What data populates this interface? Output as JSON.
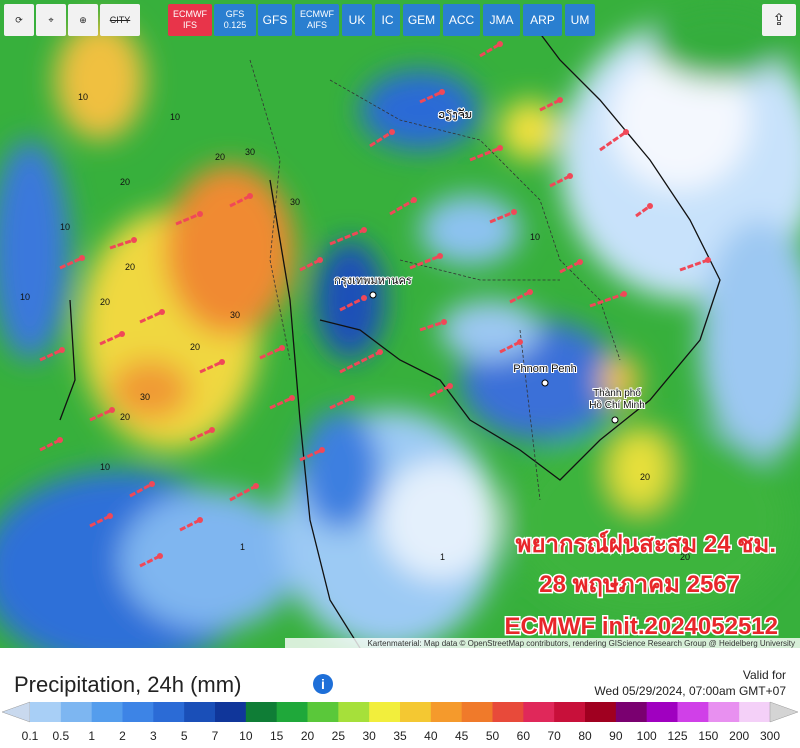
{
  "toolbar": {
    "icons": {
      "city": "CITY"
    },
    "models": [
      {
        "lines": [
          "ECMWF",
          "IFS"
        ],
        "active": true
      },
      {
        "lines": [
          "GFS",
          "0.125"
        ],
        "active": false
      },
      {
        "lines": [
          "GFS"
        ],
        "active": false
      },
      {
        "lines": [
          "ECMWF",
          "AIFS"
        ],
        "active": false
      },
      {
        "lines": [
          "UK"
        ],
        "active": false
      },
      {
        "lines": [
          "IC"
        ],
        "active": false
      },
      {
        "lines": [
          "GEM"
        ],
        "active": false
      },
      {
        "lines": [
          "ACC"
        ],
        "active": false
      },
      {
        "lines": [
          "JMA"
        ],
        "active": false
      },
      {
        "lines": [
          "ARP"
        ],
        "active": false
      },
      {
        "lines": [
          "UM"
        ],
        "active": false
      }
    ]
  },
  "map": {
    "places": [
      "กรุงเทพมหานคร",
      "Phnom Penh",
      "Thành phố",
      "Hồ Chí Minh",
      "ວຽງຈັນ"
    ],
    "contour_labels": [
      "10",
      "20",
      "30",
      "10",
      "20",
      "30",
      "30",
      "20",
      "10",
      "20",
      "30",
      "20",
      "10",
      "20",
      "1",
      "10",
      "20",
      "20",
      "1",
      "10"
    ],
    "overlay": [
      "พยากรณ์ฝนสะสม 24 ชม.",
      "28 พฤษภาคม 2567",
      "ECMWF init.2024052512"
    ],
    "attribution": "Kartenmaterial: Map data © OpenStreetMap contributors, rendering GIScience Research Group @ Heidelberg University"
  },
  "footer": {
    "title": "Precipitation, 24h (mm)",
    "valid_label": "Valid for",
    "valid_time": "Wed 05/29/2024, 07:00am GMT+07"
  },
  "legend": {
    "labels": [
      0.1,
      0.5,
      1,
      2,
      3,
      5,
      7,
      10,
      15,
      20,
      25,
      30,
      35,
      40,
      45,
      50,
      60,
      70,
      80,
      90,
      100,
      125,
      150,
      200,
      300
    ],
    "colors": [
      "#c9d9ee",
      "#a8cff6",
      "#7db6f1",
      "#549ded",
      "#3d84e6",
      "#2b6bd6",
      "#1a4fb8",
      "#10369a",
      "#0f7d36",
      "#1fa83a",
      "#5ac83a",
      "#a6e03a",
      "#f2ee3c",
      "#f4c832",
      "#f59a2c",
      "#f07a2a",
      "#e84a3a",
      "#e0285a",
      "#c8103a",
      "#a00020",
      "#7a0070",
      "#a000c0",
      "#d040e8",
      "#e890f0",
      "#f4d0f8",
      "#d4d4d4"
    ]
  }
}
